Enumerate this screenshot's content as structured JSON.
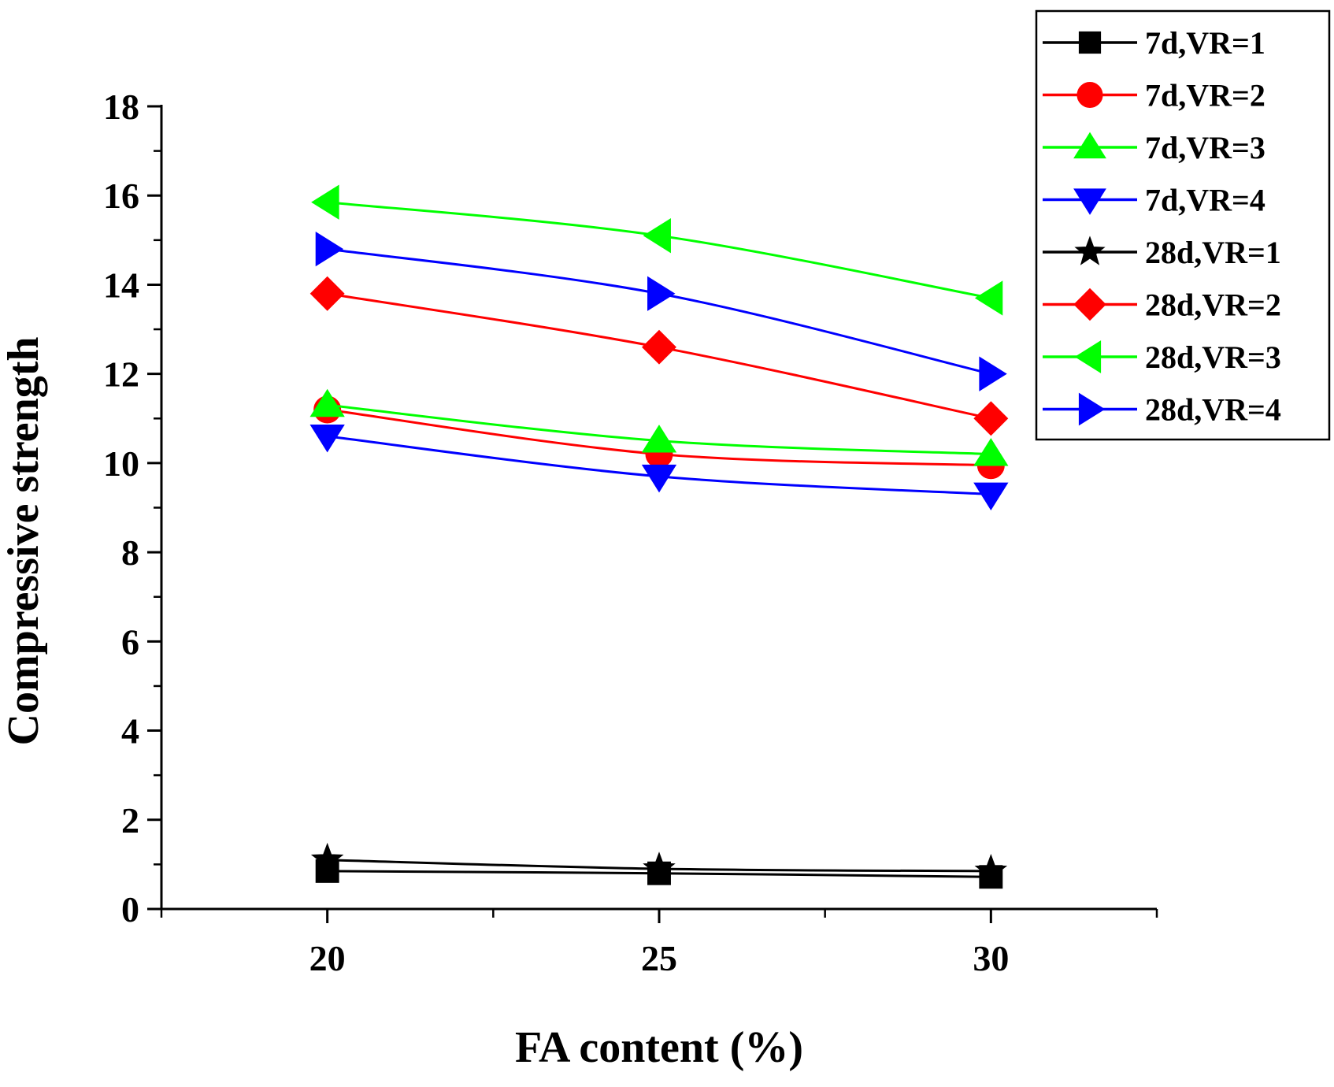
{
  "chart_data": {
    "type": "line",
    "title": "",
    "xlabel": "FA content (%)",
    "ylabel": "Compressive strength",
    "xlim": [
      17.5,
      32.5
    ],
    "ylim": [
      0,
      18
    ],
    "x_ticks": [
      "20",
      "25",
      "30"
    ],
    "y_ticks": [
      "0",
      "2",
      "4",
      "6",
      "8",
      "10",
      "12",
      "14",
      "16",
      "18"
    ],
    "x": [
      20,
      25,
      30
    ],
    "legend_position": "top-right",
    "series": [
      {
        "name": "7d,VR=1",
        "color": "#000000",
        "marker": "square",
        "values": [
          0.85,
          0.8,
          0.72
        ]
      },
      {
        "name": "7d,VR=2",
        "color": "#ff0000",
        "marker": "circle",
        "values": [
          11.2,
          10.2,
          9.95
        ]
      },
      {
        "name": "7d,VR=3",
        "color": "#00ff00",
        "marker": "triangle-up",
        "values": [
          11.3,
          10.5,
          10.2
        ]
      },
      {
        "name": "7d,VR=4",
        "color": "#0000ff",
        "marker": "triangle-down",
        "values": [
          10.6,
          9.7,
          9.3
        ]
      },
      {
        "name": "28d,VR=1",
        "color": "#000000",
        "marker": "star",
        "values": [
          1.1,
          0.9,
          0.85
        ]
      },
      {
        "name": "28d,VR=2",
        "color": "#ff0000",
        "marker": "diamond",
        "values": [
          13.8,
          12.6,
          11.0
        ]
      },
      {
        "name": "28d,VR=3",
        "color": "#00ff00",
        "marker": "triangle-left",
        "values": [
          15.85,
          15.1,
          13.7
        ]
      },
      {
        "name": "28d,VR=4",
        "color": "#0000ff",
        "marker": "triangle-right",
        "values": [
          14.8,
          13.8,
          12.0
        ]
      }
    ]
  }
}
